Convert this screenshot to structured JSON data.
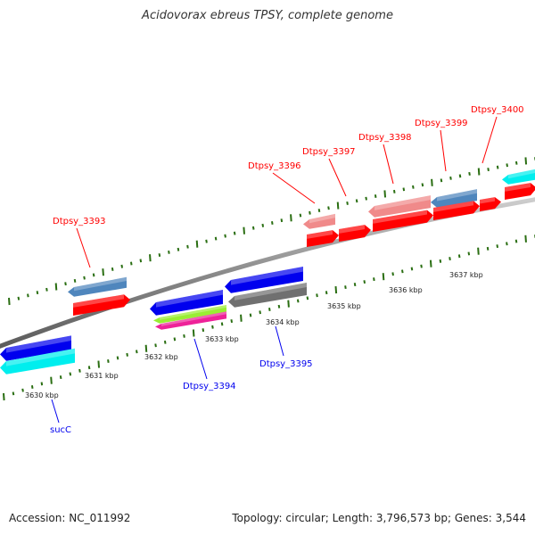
{
  "title": "Acidovorax ebreus TPSY, complete genome",
  "footer": {
    "accession": "Accession: NC_011992",
    "summary": "Topology: circular; Length: 3,796,573 bp; Genes: 3,544"
  },
  "colors": {
    "red": "#ff0000",
    "blue": "#0000ee",
    "cyan": "#00eeee",
    "steelblue": "#4f86bd",
    "pink": "#f08a8a",
    "gray": "#707070",
    "green": "#99ee33",
    "magenta": "#ee2299",
    "tick": "#2a6e12"
  },
  "ticks": [
    {
      "label": "3630 kbp"
    },
    {
      "label": "3631 kbp"
    },
    {
      "label": "3632 kbp"
    },
    {
      "label": "3633 kbp"
    },
    {
      "label": "3634 kbp"
    },
    {
      "label": "3635 kbp"
    },
    {
      "label": "3636 kbp"
    },
    {
      "label": "3637 kbp"
    }
  ],
  "labels": [
    {
      "text": "Dtpsy_3393",
      "strand": "forward"
    },
    {
      "text": "Dtpsy_3396",
      "strand": "forward"
    },
    {
      "text": "Dtpsy_3397",
      "strand": "forward"
    },
    {
      "text": "Dtpsy_3398",
      "strand": "forward"
    },
    {
      "text": "Dtpsy_3399",
      "strand": "forward"
    },
    {
      "text": "Dtpsy_3400",
      "strand": "forward"
    },
    {
      "text": "Dtpsy_3394",
      "strand": "reverse"
    },
    {
      "text": "Dtpsy_3395",
      "strand": "reverse"
    },
    {
      "text": "sucC",
      "strand": "reverse"
    }
  ]
}
